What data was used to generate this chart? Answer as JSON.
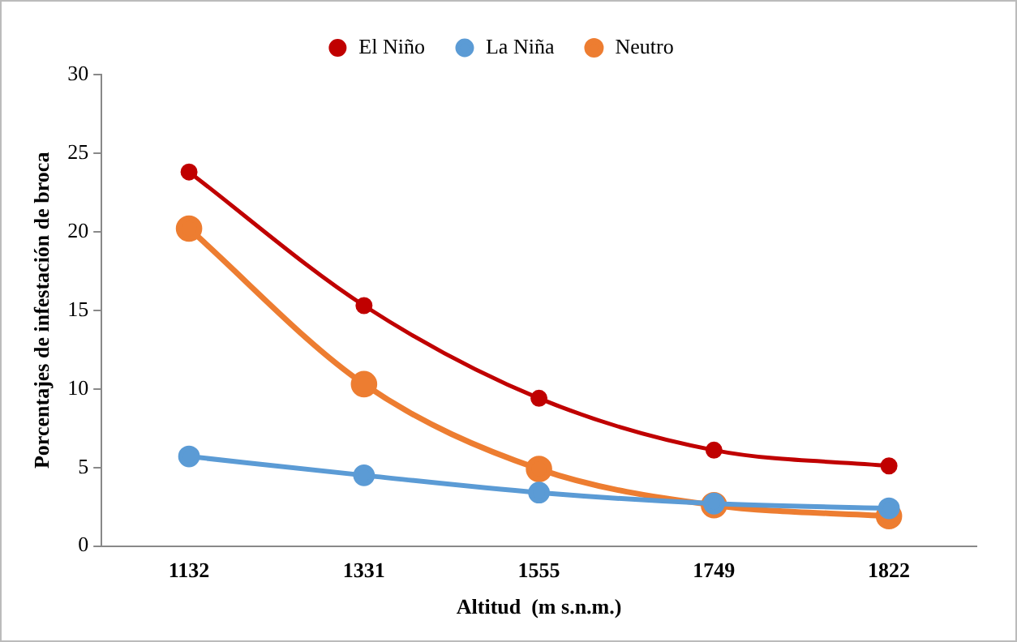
{
  "chart_data": {
    "type": "line",
    "xlabel": "Altitud  (m s.n.m.)",
    "ylabel": "Porcentajes de infestación de broca",
    "categories": [
      "1132",
      "1331",
      "1555",
      "1749",
      "1822"
    ],
    "series": [
      {
        "name": "El Niño",
        "color": "#c00000",
        "values": [
          23.8,
          15.3,
          9.4,
          6.1,
          5.1
        ]
      },
      {
        "name": "La Niña",
        "color": "#5b9bd5",
        "values": [
          5.7,
          4.5,
          3.4,
          2.7,
          2.4
        ]
      },
      {
        "name": "Neutro",
        "color": "#ed7d31",
        "values": [
          20.2,
          10.3,
          4.9,
          2.6,
          1.9
        ]
      }
    ],
    "ylim": [
      0,
      30
    ],
    "yticks": [
      0,
      5,
      10,
      15,
      20,
      25,
      30
    ],
    "grid": false,
    "legend": "top",
    "marker": "circle",
    "line_style": "solid"
  }
}
